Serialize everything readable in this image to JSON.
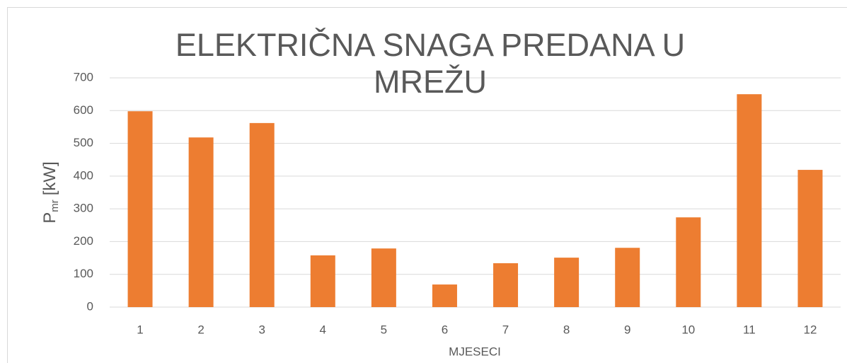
{
  "chart_data": {
    "type": "bar",
    "title": "ELEKTRIČNA SNAGA PREDANA U MREŽU",
    "x_label": "MJESECI",
    "y_label": {
      "text": "P",
      "subscript": "mr",
      "unit": "[kW]"
    },
    "categories": [
      "1",
      "2",
      "3",
      "4",
      "5",
      "6",
      "7",
      "8",
      "9",
      "10",
      "11",
      "12"
    ],
    "values": [
      598,
      518,
      562,
      158,
      179,
      69,
      134,
      151,
      181,
      274,
      650,
      419
    ],
    "color": "#ed7d31",
    "ylim": [
      0,
      700
    ],
    "yticks": [
      0,
      100,
      200,
      300,
      400,
      500,
      600,
      700
    ],
    "grid": true
  }
}
